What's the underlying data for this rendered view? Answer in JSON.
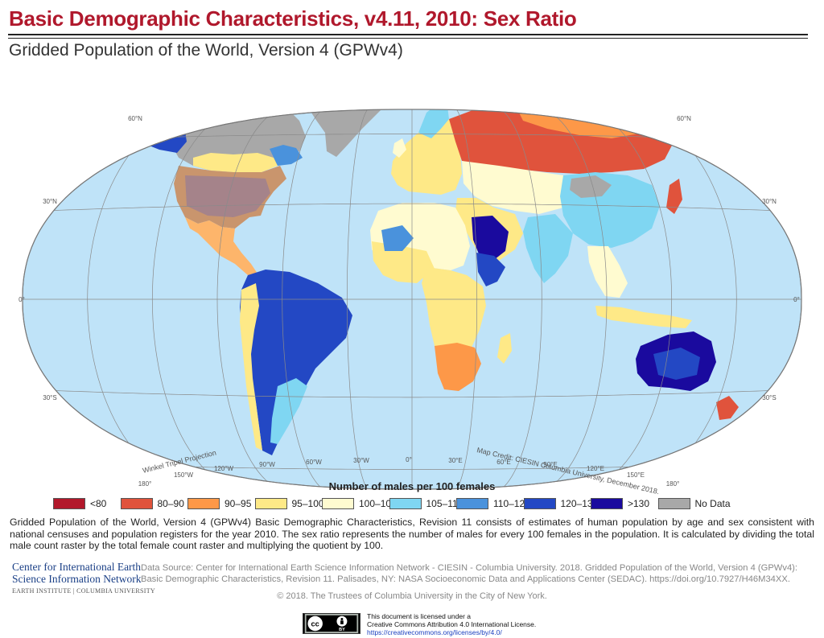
{
  "header": {
    "title": "Basic Demographic Characteristics, v4.11, 2010: Sex Ratio",
    "subtitle": "Gridded Population of the World, Version 4 (GPWv4)"
  },
  "map": {
    "projection_label": "Winkel Tripel Projection",
    "credit": "Map Credit: CIESIN Columbia University, December 2018.",
    "ocean_color": "#bfe3f8",
    "graticule": {
      "latitudes": [
        "60°N",
        "30°N",
        "0°",
        "30°S"
      ],
      "longitudes": [
        "180°",
        "150°W",
        "120°W",
        "90°W",
        "60°W",
        "30°W",
        "0°",
        "30°E",
        "60°E",
        "90°E",
        "120°E",
        "150°E",
        "180°"
      ]
    }
  },
  "legend": {
    "title": "Number of males per 100 females",
    "items": [
      {
        "label": "<80",
        "color": "#b2182b"
      },
      {
        "label": "80–90",
        "color": "#e0533c"
      },
      {
        "label": "90–95",
        "color": "#fd9848"
      },
      {
        "label": "95–100",
        "color": "#fee987"
      },
      {
        "label": "100–105",
        "color": "#fffbd0"
      },
      {
        "label": "105–110",
        "color": "#7fd6f2"
      },
      {
        "label": "110–120",
        "color": "#4a92dc"
      },
      {
        "label": "120–130",
        "color": "#2348c4"
      },
      {
        "label": ">130",
        "color": "#1a0a9e"
      },
      {
        "label": "No Data",
        "color": "#a8a8a8"
      }
    ]
  },
  "description": "Gridded Population of the World, Version 4 (GPWv4) Basic Demographic Characteristics, Revision 11 consists of estimates of human population by age and sex consistent with national censuses and population registers for the year 2010. The sex ratio represents the number of males for every 100 females in the population. It is calculated by dividing the total male count raster by the total female count raster and multiplying the quotient by 100.",
  "footer": {
    "logo_line1": "Center for International Earth",
    "logo_line2": "Science Information Network",
    "logo_line3": "EARTH INSTITUTE | COLUMBIA UNIVERSITY",
    "source": "Data Source: Center for International Earth Science Information Network - CIESIN - Columbia University. 2018. Gridded Population of the World, Version 4 (GPWv4): Basic Demographic Characteristics, Revision 11. Palisades, NY: NASA Socioeconomic Data and Applications Center (SEDAC). https://doi.org/10.7927/H46M34XX.",
    "copyright": "© 2018. The Trustees of Columbia University in the City of New York.",
    "cc_badge": "cc BY",
    "license_line1": "This document is licensed under a",
    "license_line2": "Creative Commons Attribution 4.0 International License.",
    "license_url": "https://creativecommons.org/licenses/by/4.0/"
  }
}
